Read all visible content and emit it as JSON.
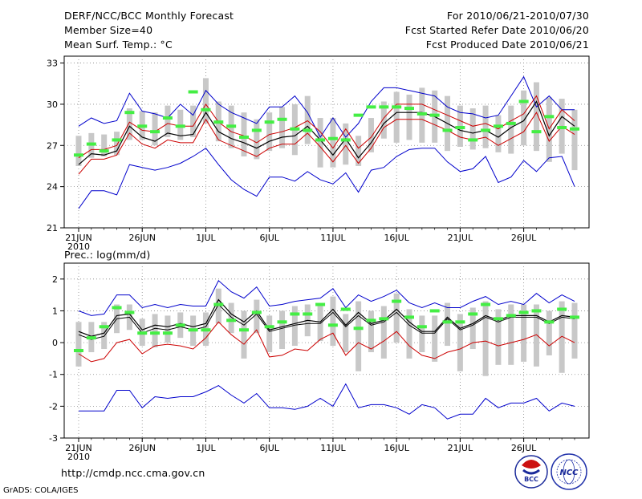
{
  "header": {
    "title": "DERF/NCC/BCC Monthly Forecast",
    "member_size": "Member Size=40",
    "variable1": "Mean Surf. Temp.: °C",
    "period": "For 2010/06/21-2010/07/30",
    "refer_date": "Fcst Started Refer Date 2010/06/20",
    "produced_date": "Fcst Produced Date 2010/06/21"
  },
  "footer": {
    "url": "http://cmdp.ncc.cma.gov.cn",
    "grads": "GrADS: COLA/IGES",
    "logo1_text": "BCC",
    "logo2_text": "NCC"
  },
  "colors": {
    "max_line": "#0000cc",
    "mean_plus_line": "#cc0000",
    "ensemble_mean": "#000000",
    "spread_bar": "#c8c8c8",
    "observation_mark": "#44ee44",
    "grid": "#888888"
  },
  "chart_data": [
    {
      "type": "line",
      "title": "Mean Surf. Temp.: °C",
      "xlabel": "",
      "ylabel": "",
      "x_days": 40,
      "x_tick_labels": [
        "21JUN",
        "26JUN",
        "1JUL",
        "6JUL",
        "11JUL",
        "16JUL",
        "21JUL",
        "26JUL"
      ],
      "x_tick_days": [
        0,
        5,
        10,
        15,
        20,
        25,
        30,
        35
      ],
      "year_label": "2010",
      "ylim": [
        21,
        33.5
      ],
      "y_ticks": [
        21,
        24,
        27,
        30,
        33
      ],
      "series": [
        {
          "name": "max",
          "color": "#0000cc",
          "values": [
            28.4,
            29.0,
            28.6,
            28.8,
            30.8,
            29.5,
            29.3,
            29.0,
            30.0,
            29.2,
            31.0,
            30.0,
            29.4,
            29.0,
            28.6,
            29.8,
            29.8,
            30.6,
            29.4,
            27.6,
            29.0,
            27.6,
            28.6,
            30.2,
            31.2,
            31.2,
            31.0,
            30.8,
            30.6,
            29.8,
            29.4,
            29.3,
            29.0,
            29.2,
            30.6,
            32.0,
            29.8,
            30.6,
            29.6,
            29.6
          ]
        },
        {
          "name": "min",
          "color": "#0000cc",
          "values": [
            22.4,
            23.7,
            23.7,
            23.4,
            25.6,
            25.4,
            25.2,
            25.4,
            25.7,
            26.2,
            26.8,
            25.6,
            24.5,
            23.8,
            23.3,
            24.7,
            24.7,
            24.4,
            25.1,
            24.5,
            24.2,
            25.0,
            23.6,
            25.2,
            25.4,
            26.2,
            26.7,
            26.8,
            26.8,
            25.8,
            25.1,
            25.3,
            26.2,
            24.3,
            24.7,
            25.9,
            25.1,
            26.1,
            26.2,
            24.0
          ]
        },
        {
          "name": "mean_plus",
          "color": "#cc0000",
          "values": [
            26.1,
            26.7,
            26.7,
            27.0,
            28.7,
            28.1,
            28.0,
            28.6,
            28.4,
            28.4,
            30.0,
            28.7,
            28.0,
            27.7,
            27.2,
            27.8,
            28.0,
            28.3,
            28.8,
            28.0,
            26.8,
            28.2,
            26.8,
            27.6,
            29.0,
            30.0,
            30.0,
            30.0,
            29.6,
            29.2,
            28.8,
            28.4,
            28.6,
            28.2,
            28.8,
            29.3,
            30.6,
            28.2,
            29.6,
            28.8
          ]
        },
        {
          "name": "ensemble_mean",
          "color": "#000000",
          "values": [
            25.6,
            26.4,
            26.3,
            26.6,
            28.4,
            27.6,
            27.3,
            27.9,
            27.7,
            27.8,
            29.4,
            28.0,
            27.5,
            27.2,
            26.8,
            27.3,
            27.6,
            27.7,
            28.4,
            27.4,
            26.3,
            27.5,
            26.1,
            27.2,
            28.6,
            29.4,
            29.4,
            29.4,
            29.1,
            28.6,
            28.1,
            27.9,
            28.1,
            27.6,
            28.3,
            28.8,
            30.2,
            27.7,
            29.1,
            28.4
          ]
        },
        {
          "name": "mean_minus",
          "color": "#cc0000",
          "values": [
            24.9,
            26.0,
            26.0,
            26.3,
            27.9,
            27.1,
            26.8,
            27.4,
            27.2,
            27.2,
            28.9,
            27.4,
            27.0,
            26.6,
            26.2,
            26.8,
            27.1,
            27.1,
            27.9,
            26.9,
            25.8,
            27.0,
            25.7,
            26.8,
            28.3,
            28.9,
            28.9,
            28.9,
            28.5,
            28.1,
            27.6,
            27.4,
            27.6,
            27.0,
            27.5,
            28.0,
            29.4,
            27.3,
            28.4,
            27.8
          ]
        }
      ],
      "observed": [
        26.3,
        27.1,
        26.6,
        27.4,
        29.4,
        28.4,
        28.0,
        29.0,
        28.4,
        30.9,
        29.6,
        28.7,
        28.4,
        27.6,
        28.1,
        28.7,
        28.9,
        28.2,
        28.1,
        27.4,
        27.5,
        27.4,
        29.2,
        29.8,
        29.8,
        29.8,
        29.7,
        29.3,
        29.2,
        28.1,
        28.3,
        27.4,
        28.1,
        28.4,
        28.6,
        30.2,
        28.0,
        29.1,
        28.3,
        28.2
      ],
      "spread_low": [
        25.5,
        26.1,
        26.2,
        26.3,
        27.4,
        27.4,
        27.0,
        27.6,
        27.4,
        27.6,
        28.6,
        27.3,
        26.8,
        26.2,
        26.0,
        26.6,
        26.8,
        26.3,
        27.1,
        25.4,
        25.4,
        25.6,
        25.5,
        26.5,
        27.5,
        27.2,
        27.4,
        27.2,
        27.2,
        26.6,
        26.9,
        26.7,
        26.8,
        26.5,
        26.4,
        27.0,
        26.6,
        25.8,
        26.4,
        25.2
      ],
      "spread_high": [
        27.7,
        27.9,
        27.8,
        28.0,
        29.7,
        29.5,
        29.4,
        29.9,
        29.6,
        29.9,
        31.9,
        30.2,
        29.9,
        29.4,
        28.9,
        29.4,
        29.8,
        30.0,
        30.6,
        29.0,
        29.0,
        28.6,
        27.7,
        29.0,
        30.2,
        30.9,
        30.7,
        31.2,
        31.0,
        30.6,
        29.9,
        29.7,
        29.9,
        29.2,
        29.9,
        31.0,
        31.6,
        30.5,
        30.4,
        29.6
      ]
    },
    {
      "type": "line",
      "title": "Prec.: log(mm/d)",
      "xlabel": "",
      "ylabel": "",
      "x_days": 40,
      "x_tick_labels": [
        "21JUN",
        "26JUN",
        "1JUL",
        "6JUL",
        "11JUL",
        "16JUL",
        "21JUL",
        "26JUL"
      ],
      "x_tick_days": [
        0,
        5,
        10,
        15,
        20,
        25,
        30,
        35
      ],
      "year_label": "2010",
      "ylim": [
        -3,
        2.5
      ],
      "y_ticks": [
        -3,
        -2,
        -1,
        0,
        1,
        2
      ],
      "series": [
        {
          "name": "max",
          "color": "#0000cc",
          "values": [
            1.0,
            0.85,
            0.9,
            1.5,
            1.5,
            1.1,
            1.2,
            1.1,
            1.2,
            1.15,
            1.15,
            1.95,
            1.6,
            1.4,
            1.75,
            1.15,
            1.2,
            1.3,
            1.35,
            1.4,
            1.7,
            1.1,
            1.5,
            1.3,
            1.45,
            1.65,
            1.25,
            1.1,
            1.25,
            1.1,
            1.1,
            1.3,
            1.45,
            1.2,
            1.3,
            1.2,
            1.55,
            1.25,
            1.5,
            1.3
          ]
        },
        {
          "name": "min",
          "color": "#0000cc",
          "values": [
            -2.15,
            -2.15,
            -2.15,
            -1.5,
            -1.5,
            -2.05,
            -1.7,
            -1.75,
            -1.7,
            -1.7,
            -1.55,
            -1.35,
            -1.65,
            -1.9,
            -1.6,
            -2.05,
            -2.05,
            -2.1,
            -2.0,
            -1.75,
            -2.0,
            -1.3,
            -2.05,
            -1.95,
            -1.95,
            -2.05,
            -2.25,
            -1.95,
            -2.05,
            -2.4,
            -2.25,
            -2.25,
            -1.75,
            -2.05,
            -1.9,
            -1.9,
            -1.75,
            -2.15,
            -1.9,
            -2.0
          ]
        },
        {
          "name": "mean_plus",
          "color": "#cc0000",
          "values": [
            -0.35,
            -0.6,
            -0.5,
            0.0,
            0.1,
            -0.35,
            -0.1,
            -0.05,
            -0.1,
            -0.2,
            0.15,
            0.65,
            0.25,
            -0.05,
            0.4,
            -0.45,
            -0.4,
            -0.2,
            -0.25,
            0.1,
            0.3,
            -0.4,
            0.0,
            -0.2,
            0.05,
            0.35,
            -0.1,
            -0.4,
            -0.5,
            -0.3,
            -0.2,
            0.0,
            0.05,
            -0.1,
            0.0,
            0.1,
            0.25,
            -0.1,
            0.2,
            0.0
          ]
        },
        {
          "name": "ensemble_mean",
          "color": "#000000",
          "values": [
            0.35,
            0.2,
            0.3,
            0.85,
            0.9,
            0.4,
            0.55,
            0.5,
            0.6,
            0.5,
            0.6,
            1.35,
            0.9,
            0.65,
            1.0,
            0.4,
            0.5,
            0.6,
            0.7,
            0.65,
            1.05,
            0.55,
            0.95,
            0.6,
            0.7,
            1.05,
            0.65,
            0.35,
            0.35,
            0.8,
            0.45,
            0.6,
            0.85,
            0.7,
            0.85,
            0.85,
            0.85,
            0.65,
            0.85,
            0.8
          ]
        },
        {
          "name": "mean_low",
          "color": "#000000",
          "values": [
            0.25,
            0.1,
            0.2,
            0.75,
            0.8,
            0.3,
            0.45,
            0.4,
            0.5,
            0.4,
            0.5,
            1.2,
            0.8,
            0.55,
            0.9,
            0.35,
            0.45,
            0.55,
            0.6,
            0.6,
            0.95,
            0.5,
            0.85,
            0.55,
            0.65,
            0.95,
            0.55,
            0.3,
            0.3,
            0.75,
            0.4,
            0.55,
            0.8,
            0.65,
            0.8,
            0.8,
            0.8,
            0.6,
            0.8,
            0.75
          ]
        }
      ],
      "observed": [
        -0.25,
        0.15,
        0.5,
        1.1,
        0.95,
        0.3,
        0.3,
        0.3,
        0.55,
        0.4,
        0.4,
        1.2,
        0.7,
        0.4,
        0.95,
        0.5,
        0.65,
        0.9,
        0.9,
        1.2,
        0.55,
        1.05,
        0.45,
        0.7,
        0.75,
        1.3,
        0.8,
        0.5,
        1.0,
        0.65,
        0.65,
        0.9,
        1.2,
        0.75,
        0.85,
        0.95,
        1.0,
        0.65,
        1.05,
        0.8
      ],
      "spread_low": [
        -0.75,
        -0.3,
        -0.2,
        0.3,
        0.4,
        -0.1,
        -0.15,
        0.0,
        0.15,
        -0.1,
        -0.1,
        0.6,
        0.3,
        -0.5,
        0.3,
        -0.3,
        -0.2,
        -0.1,
        0.2,
        0.05,
        -0.1,
        -0.3,
        -0.9,
        -0.3,
        -0.5,
        0.0,
        -0.5,
        -0.3,
        -0.6,
        -0.1,
        -0.9,
        -0.2,
        -1.05,
        -0.7,
        -0.7,
        -0.6,
        -0.75,
        -0.4,
        -0.95,
        -0.5
      ],
      "spread_high": [
        0.65,
        0.65,
        0.65,
        1.2,
        1.2,
        0.75,
        0.9,
        0.85,
        0.95,
        0.85,
        0.95,
        1.7,
        1.25,
        1.0,
        1.35,
        0.85,
        1.0,
        1.15,
        1.2,
        1.25,
        1.45,
        0.9,
        1.3,
        1.0,
        1.15,
        1.55,
        1.05,
        0.85,
        0.85,
        1.25,
        0.9,
        1.1,
        1.3,
        1.05,
        1.2,
        1.2,
        1.2,
        1.0,
        1.3,
        1.25
      ]
    }
  ]
}
